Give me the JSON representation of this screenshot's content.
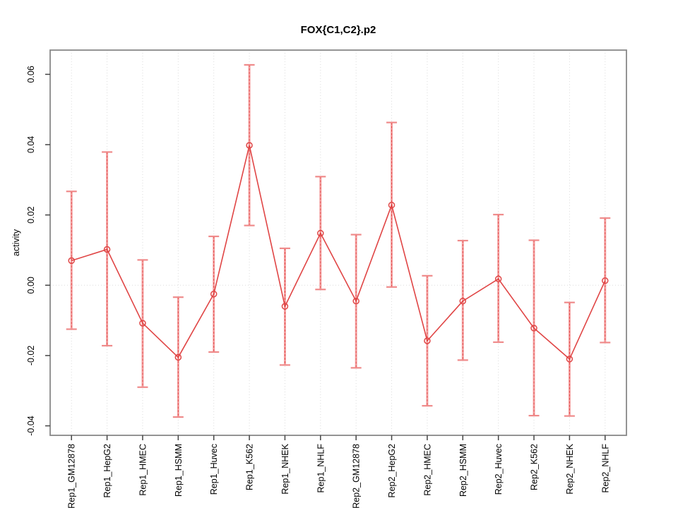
{
  "figure": {
    "title": "FOX{C1,C2}.p2",
    "ylabel": "activity"
  },
  "chart_data": {
    "type": "line",
    "title": "FOX{C1,C2}.p2",
    "xlabel": "",
    "ylabel": "activity",
    "categories": [
      "Rep1_GM12878",
      "Rep1_HepG2",
      "Rep1_HMEC",
      "Rep1_HSMM",
      "Rep1_Huvec",
      "Rep1_K562",
      "Rep1_NHEK",
      "Rep1_NHLF",
      "Rep2_GM12878",
      "Rep2_HepG2",
      "Rep2_HMEC",
      "Rep2_HSMM",
      "Rep2_Huvec",
      "Rep2_K562",
      "Rep2_NHEK",
      "Rep2_NHLF"
    ],
    "series": [
      {
        "name": "activity",
        "values": [
          0.007,
          0.0102,
          -0.0108,
          -0.0205,
          -0.0025,
          0.0398,
          -0.006,
          0.0148,
          -0.0045,
          0.0228,
          -0.0158,
          -0.0045,
          0.0018,
          -0.0122,
          -0.021,
          0.0013
        ],
        "ci_low": [
          -0.0125,
          -0.0172,
          -0.029,
          -0.0375,
          -0.019,
          0.017,
          -0.0227,
          -0.0012,
          -0.0235,
          -0.0005,
          -0.0343,
          -0.0213,
          -0.0162,
          -0.0371,
          -0.0372,
          -0.0163
        ],
        "ci_high": [
          0.0267,
          0.0379,
          0.0072,
          -0.0034,
          0.0139,
          0.0627,
          0.0105,
          0.0309,
          0.0144,
          0.0463,
          0.0027,
          0.0127,
          0.0201,
          0.0128,
          -0.0049,
          0.0191
        ]
      }
    ],
    "ylim": [
      -0.0427,
      0.0669
    ],
    "yticks": [
      -0.04,
      -0.02,
      0.0,
      0.02,
      0.04,
      0.06
    ],
    "grid": "vertical dotted gridline at every category; horizontal dotted line at y=0",
    "legend_position": "none",
    "marker": "open-circle",
    "error_bars": true,
    "colors": {
      "line": "#e04545",
      "marker": "#e04545",
      "error_bar_band": "#f5a3a3",
      "error_bar_cap": "#ef8a8a",
      "grid": "#dcdcdc",
      "frame": "#888888",
      "tick": "#444444",
      "text": "#000000",
      "background": "#ffffff"
    }
  }
}
